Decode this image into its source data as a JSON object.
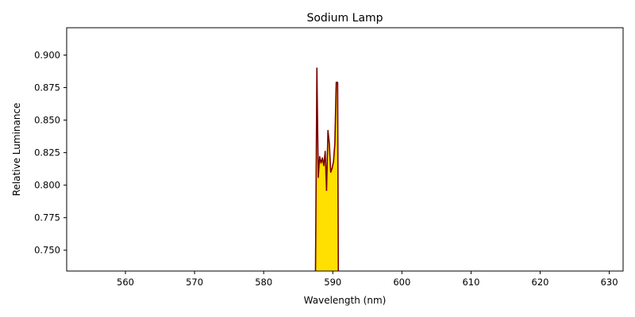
{
  "chart_data": {
    "type": "area",
    "title": "Sodium Lamp",
    "xlabel": "Wavelength (nm)",
    "ylabel": "Relative Luminance",
    "xlim": [
      551.5,
      632.0
    ],
    "ylim": [
      0.734,
      0.921
    ],
    "x_ticks": [
      560,
      570,
      580,
      590,
      600,
      610,
      620,
      630
    ],
    "y_ticks": [
      0.75,
      0.775,
      0.8,
      0.825,
      0.85,
      0.875,
      0.9
    ],
    "y_tick_labels": [
      "0.750",
      "0.775",
      "0.800",
      "0.825",
      "0.850",
      "0.875",
      "0.900"
    ],
    "grid": false,
    "legend": "none",
    "series": [
      {
        "x": [
          587.5,
          587.7,
          587.9,
          588.1,
          588.3,
          588.5,
          588.7,
          588.9,
          589.1,
          589.3,
          589.5,
          589.7,
          589.9,
          590.1,
          590.3,
          590.5,
          590.7,
          590.8
        ],
        "y": [
          0.734,
          0.89,
          0.806,
          0.822,
          0.817,
          0.821,
          0.815,
          0.826,
          0.796,
          0.842,
          0.832,
          0.81,
          0.813,
          0.818,
          0.832,
          0.879,
          0.879,
          0.734
        ]
      }
    ],
    "colors": {
      "fill": "#ffe000",
      "line": "#7a0000"
    }
  }
}
